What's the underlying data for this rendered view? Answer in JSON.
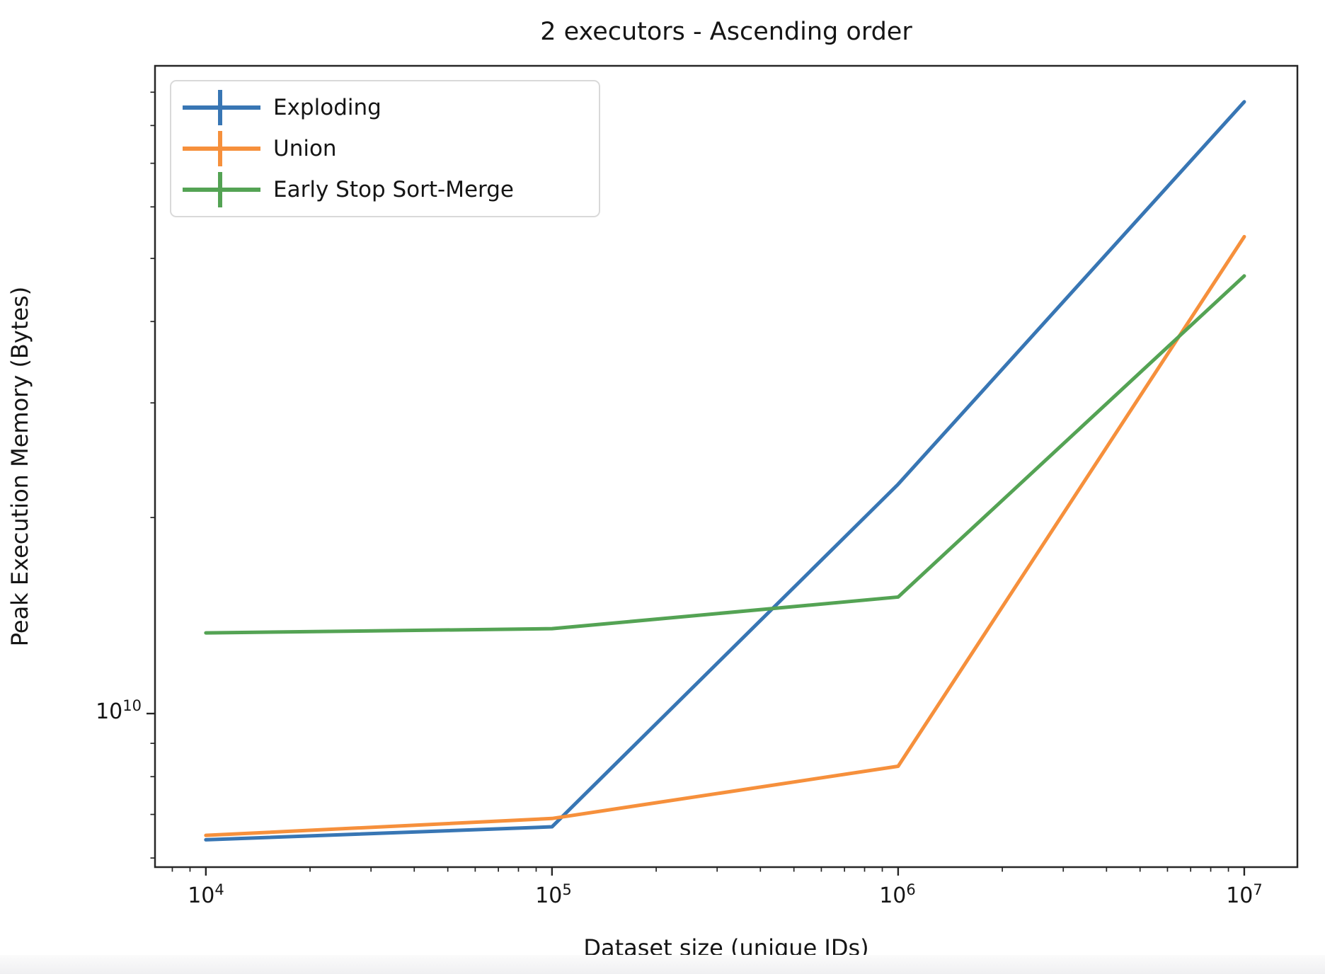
{
  "title": "2 executors - Ascending order",
  "axes": {
    "x": {
      "label": "Dataset size (unique IDs)",
      "scale": "log",
      "ticks": [
        {
          "base": "10",
          "exp": "4"
        },
        {
          "base": "10",
          "exp": "5"
        },
        {
          "base": "10",
          "exp": "6"
        },
        {
          "base": "10",
          "exp": "7"
        }
      ]
    },
    "y": {
      "label": "Peak Execution Memory (Bytes)",
      "scale": "log",
      "ticks": [
        {
          "base": "10",
          "exp": "10"
        }
      ]
    }
  },
  "legend": {
    "position": "upper left",
    "items": [
      {
        "label": "Exploding",
        "marker": "errorbar-cross"
      },
      {
        "label": "Union",
        "marker": "errorbar-cross"
      },
      {
        "label": "Early Stop Sort-Merge",
        "marker": "errorbar-cross"
      }
    ]
  },
  "chart_data": {
    "type": "line",
    "title": "2 executors - Ascending order",
    "xlabel": "Dataset size (unique IDs)",
    "ylabel": "Peak Execution Memory (Bytes)",
    "xscale": "log",
    "yscale": "log",
    "x": [
      10000,
      100000,
      1000000,
      10000000
    ],
    "xlim": [
      7130,
      14240000
    ],
    "ylim": [
      5810000000.0,
      98800000000.0
    ],
    "grid": false,
    "legend_position": "upper left",
    "series": [
      {
        "name": "Exploding",
        "color": "#3876b4",
        "values": [
          6400000000.0,
          6700000000.0,
          22500000000.0,
          87000000000.0
        ]
      },
      {
        "name": "Union",
        "color": "#f6903c",
        "values": [
          6500000000.0,
          6900000000.0,
          8300000000.0,
          54000000000.0
        ]
      },
      {
        "name": "Early Stop Sort-Merge",
        "color": "#54a354",
        "values": [
          13300000000.0,
          13500000000.0,
          15100000000.0,
          47000000000.0
        ]
      }
    ]
  },
  "colors": {
    "spine": "#262626",
    "text": "#151515",
    "background": "#ffffff",
    "footer_strip": "#f0f0f2"
  }
}
